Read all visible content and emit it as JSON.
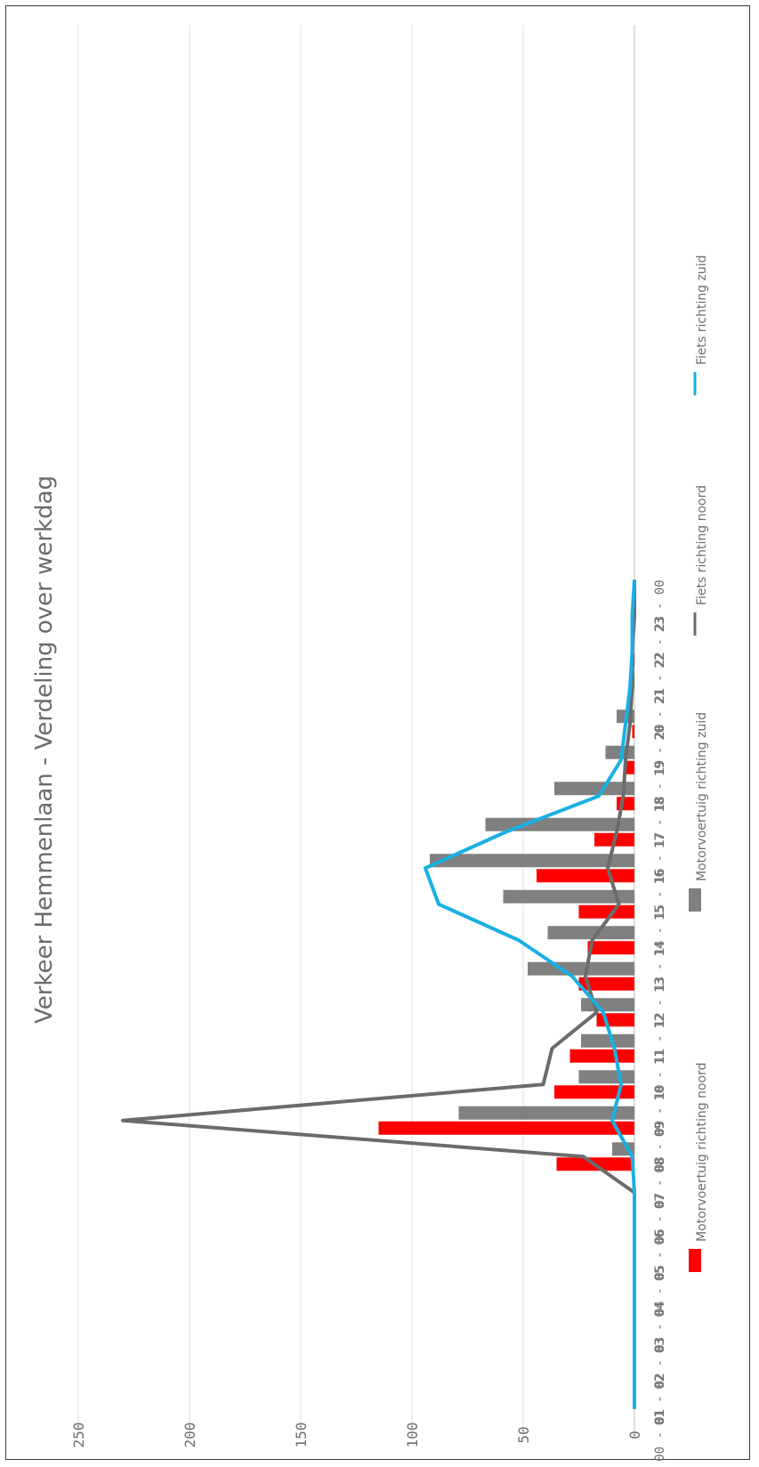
{
  "chart_data": {
    "type": "bar",
    "title": "Verkeer Hemmenlaan  -  Verdeling over werkdag",
    "categories": [
      "00 - 01",
      "01 - 02",
      "02 - 03",
      "03 - 04",
      "04 - 05",
      "05 - 06",
      "06 - 07",
      "07 - 08",
      "08 - 09",
      "09 - 10",
      "10 - 11",
      "11 - 12",
      "12 - 13",
      "13 - 14",
      "14 - 15",
      "15 - 16",
      "16 - 17",
      "17 - 18",
      "18 - 19",
      "19 - 20",
      "20 - 21",
      "21 - 22",
      "22 - 23",
      "23 - 00"
    ],
    "y_ticks": [
      "0",
      "50",
      "100",
      "150",
      "200",
      "250"
    ],
    "ylim": [
      0,
      250
    ],
    "grid": true,
    "legend_position": "bottom",
    "series": [
      {
        "name": "Motorvoertuig richting noord",
        "type": "bar",
        "color": "#ff0000",
        "values": [
          0,
          0,
          0,
          0,
          0,
          0,
          0,
          35,
          115,
          36,
          29,
          17,
          25,
          21,
          25,
          44,
          18,
          8,
          4,
          1,
          0,
          1,
          0,
          0
        ]
      },
      {
        "name": "Motorvoertuig richting zuid",
        "type": "bar",
        "color": "#808080",
        "values": [
          0,
          0,
          0,
          0,
          0,
          0,
          0,
          10,
          79,
          25,
          24,
          24,
          48,
          39,
          59,
          92,
          67,
          36,
          13,
          8,
          1,
          1,
          0,
          0
        ]
      },
      {
        "name": "Fiets richting noord",
        "type": "line",
        "color": "#6b6b6b",
        "values": [
          0,
          0,
          0,
          0,
          0,
          0,
          0,
          23,
          230,
          41,
          37,
          17,
          22,
          19,
          7,
          12,
          8,
          5,
          4,
          2,
          1,
          1,
          0,
          0
        ]
      },
      {
        "name": "Fiets richting zuid",
        "type": "line",
        "color": "#19b0e3",
        "values": [
          0,
          0,
          0,
          0,
          0,
          0,
          0,
          1,
          10,
          6,
          9,
          14,
          28,
          52,
          88,
          94,
          58,
          16,
          6,
          4,
          2,
          1,
          1,
          0
        ]
      }
    ]
  }
}
